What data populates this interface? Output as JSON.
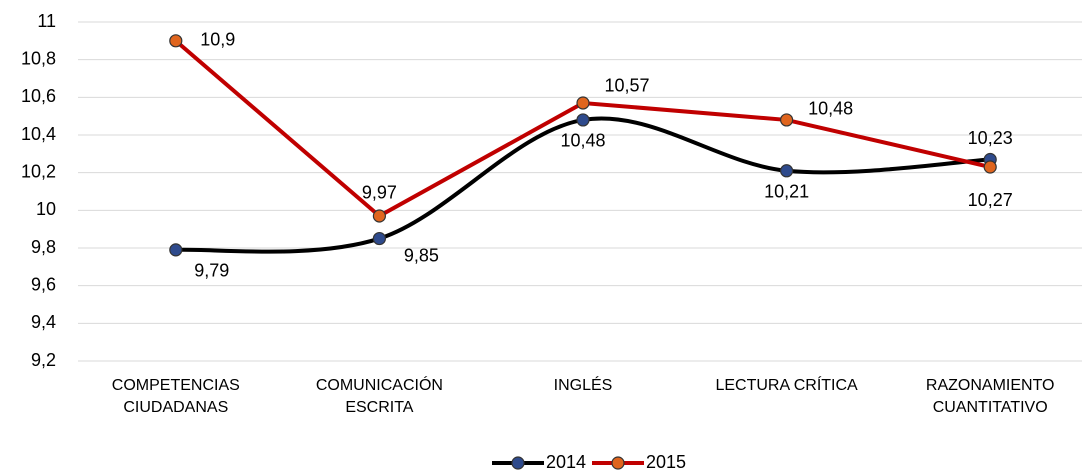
{
  "chart_data": {
    "type": "line",
    "categories": [
      [
        "COMPETENCIAS",
        "CIUDADANAS"
      ],
      [
        "COMUNICACIÓN",
        "ESCRITA"
      ],
      [
        "INGLÉS"
      ],
      [
        "LECTURA CRÍTICA"
      ],
      [
        "RAZONAMIENTO",
        "CUANTITATIVO"
      ]
    ],
    "series": [
      {
        "name": "2014",
        "color": "#000000",
        "marker_color": "#2e4a8c",
        "smooth": true,
        "values": [
          9.79,
          9.85,
          10.48,
          10.21,
          10.27
        ],
        "value_labels": [
          "9,79",
          "9,85",
          "10,48",
          "10,21",
          "10,27"
        ]
      },
      {
        "name": "2015",
        "color": "#c00000",
        "marker_color": "#e0651e",
        "smooth": false,
        "values": [
          10.9,
          9.97,
          10.57,
          10.48,
          10.23
        ],
        "value_labels": [
          "10,9",
          "9,97",
          "10,57",
          "10,48",
          "10,23"
        ]
      }
    ],
    "ylim": [
      9.2,
      11
    ],
    "yticks": [
      {
        "value": 9.2,
        "label": "9,2"
      },
      {
        "value": 9.4,
        "label": "9,4"
      },
      {
        "value": 9.6,
        "label": "9,6"
      },
      {
        "value": 9.8,
        "label": "9,8"
      },
      10,
      {
        "value": 10.2,
        "label": "10,2"
      },
      {
        "value": 10.4,
        "label": "10,4"
      },
      {
        "value": 10.6,
        "label": "10,6"
      },
      {
        "value": 10.8,
        "label": "10,8"
      },
      11
    ],
    "grid": true,
    "legend": "bottom"
  }
}
